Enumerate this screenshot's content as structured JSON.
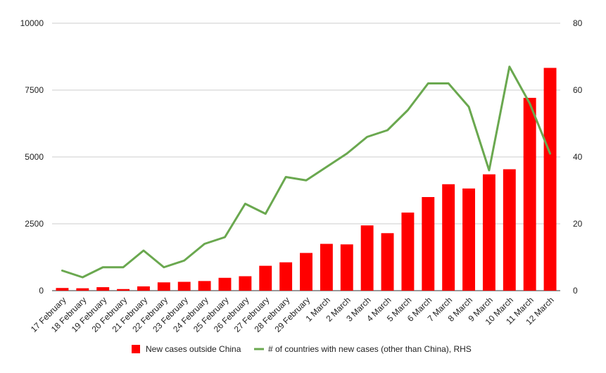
{
  "chart_data": {
    "type": "bar",
    "categories": [
      "17 February",
      "18 February",
      "19 February",
      "20 February",
      "21 February",
      "22 February",
      "23 February",
      "24 February",
      "25 February",
      "26 February",
      "27 February",
      "28 February",
      "29 February",
      "1 March",
      "2 March",
      "3 March",
      "4 March",
      "5 March",
      "6 March",
      "7 March",
      "8 March",
      "9 March",
      "10 March",
      "11 March",
      "12 March"
    ],
    "series": [
      {
        "name": "New cases outside China",
        "kind": "bar",
        "axis": "left",
        "color": "#ff0000",
        "values": [
          100,
          90,
          130,
          60,
          160,
          310,
          330,
          360,
          480,
          540,
          930,
          1060,
          1410,
          1750,
          1730,
          2440,
          2150,
          2920,
          3500,
          3980,
          3820,
          4350,
          4540,
          7210,
          8330
        ]
      },
      {
        "name": "# of countries with new cases (other than China), RHS",
        "kind": "line",
        "axis": "right",
        "color": "#6aa84f",
        "values": [
          6,
          4,
          7,
          7,
          12,
          7,
          9,
          14,
          16,
          26,
          23,
          34,
          33,
          37,
          41,
          46,
          48,
          54,
          62,
          62,
          55,
          36,
          67,
          56,
          41
        ]
      }
    ],
    "y_left": {
      "min": 0,
      "max": 10000,
      "ticks": [
        0,
        2500,
        5000,
        7500,
        10000
      ]
    },
    "y_right": {
      "min": 0,
      "max": 80,
      "ticks": [
        0,
        20,
        40,
        60,
        80
      ]
    },
    "grid": true,
    "legend": "bottom"
  }
}
